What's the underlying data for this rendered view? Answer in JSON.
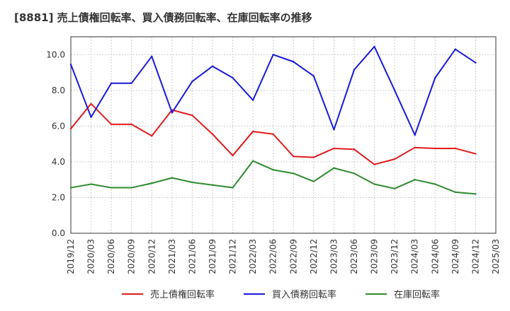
{
  "chart_data": {
    "type": "line",
    "title": "[8881]  売上債権回転率、買入債務回転率、在庫回転率の推移",
    "xlabel": "",
    "ylabel": "",
    "ylim": [
      0,
      11
    ],
    "yticks": [
      0.0,
      2.0,
      4.0,
      6.0,
      8.0,
      10.0
    ],
    "ytick_labels": [
      "0.0",
      "2.0",
      "4.0",
      "6.0",
      "8.0",
      "10.0"
    ],
    "categories": [
      "2019/12",
      "2020/03",
      "2020/06",
      "2020/09",
      "2020/12",
      "2021/03",
      "2021/06",
      "2021/09",
      "2021/12",
      "2022/03",
      "2022/06",
      "2022/09",
      "2022/12",
      "2023/03",
      "2023/06",
      "2023/09",
      "2023/12",
      "2024/03",
      "2024/06",
      "2024/09",
      "2024/12",
      "2025/03"
    ],
    "grid": true,
    "legend_position": "bottom",
    "series": [
      {
        "name": "売上債権回転率",
        "color": "#e41a1c",
        "values": [
          5.85,
          7.25,
          6.1,
          6.1,
          5.45,
          6.9,
          6.6,
          5.55,
          4.35,
          5.7,
          5.55,
          4.3,
          4.25,
          4.75,
          4.7,
          3.85,
          4.15,
          4.8,
          4.75,
          4.75,
          4.45,
          null
        ]
      },
      {
        "name": "買入債務回転率",
        "color": "#1a1adc",
        "values": [
          9.45,
          6.5,
          8.4,
          8.4,
          9.9,
          6.75,
          8.5,
          9.35,
          8.7,
          7.45,
          10.0,
          9.6,
          8.8,
          5.8,
          9.15,
          10.45,
          8.0,
          5.5,
          8.7,
          10.3,
          9.55,
          null
        ]
      },
      {
        "name": "在庫回転率",
        "color": "#2e8b2e",
        "values": [
          2.55,
          2.75,
          2.55,
          2.55,
          2.8,
          3.1,
          2.85,
          2.7,
          2.55,
          4.05,
          3.55,
          3.35,
          2.9,
          3.65,
          3.35,
          2.75,
          2.5,
          3.0,
          2.75,
          2.3,
          2.2,
          null
        ]
      }
    ]
  }
}
